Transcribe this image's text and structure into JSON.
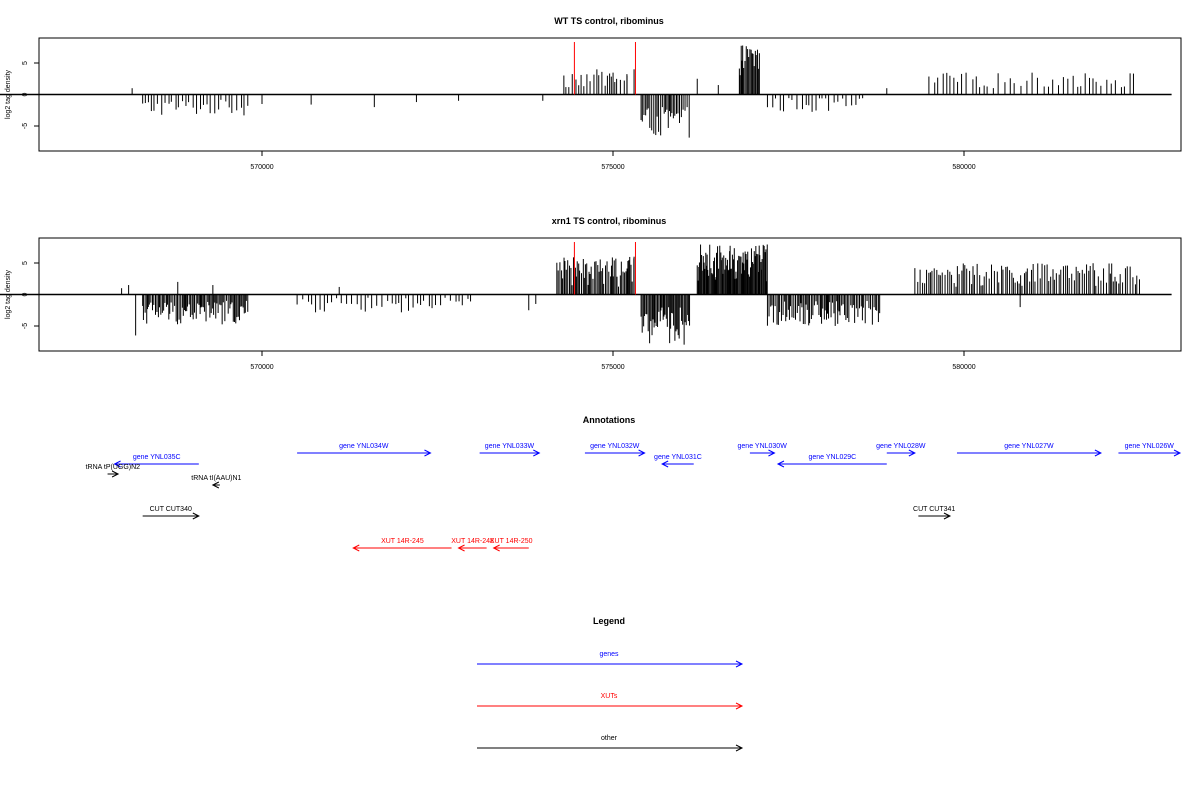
{
  "chart_data": [
    {
      "type": "bar",
      "title": "WT TS control, ribominus",
      "ylabel": "log2 tag density",
      "xlabel": "",
      "xlim": [
        567500,
        582500
      ],
      "ylim": [
        -8.5,
        8.5
      ],
      "x_ticks": [
        570000,
        575000,
        580000
      ],
      "x_tick_labels": [
        "570000",
        "575000",
        "580000"
      ],
      "y_ticks": [
        -5,
        0,
        5
      ],
      "y_tick_labels": [
        "-5",
        "0",
        "5"
      ],
      "baseline": {
        "x": [
          568000,
          583000
        ],
        "y": 0
      },
      "markers": [
        574450,
        575320
      ],
      "marker_color": "#ff0000",
      "bar_color": "#000000",
      "density_regions": [
        {
          "x": [
            568300,
            569800
          ],
          "min": -3.5,
          "max": -0.8,
          "step": 50
        },
        {
          "x": [
            574300,
            575200
          ],
          "min": 1,
          "max": 4,
          "step": 40
        },
        {
          "x": [
            575400,
            576100
          ],
          "min": -7,
          "max": -2,
          "step": 22
        },
        {
          "x": [
            576800,
            577100
          ],
          "min": 3,
          "max": 8,
          "step": 15
        },
        {
          "x": [
            577200,
            578600
          ],
          "min": -3,
          "max": -0.5,
          "step": 60
        },
        {
          "x": [
            579500,
            582500
          ],
          "min": 1,
          "max": 3.5,
          "step": 70
        }
      ],
      "values": [
        [
          568150,
          1
        ],
        [
          570000,
          -1.5
        ],
        [
          570700,
          -1.6
        ],
        [
          571600,
          -2
        ],
        [
          572200,
          -1.2
        ],
        [
          572800,
          -1
        ],
        [
          574000,
          -1
        ],
        [
          575300,
          4
        ],
        [
          575200,
          3
        ],
        [
          576200,
          2.5
        ],
        [
          576500,
          1.5
        ],
        [
          578900,
          1
        ]
      ]
    },
    {
      "type": "bar",
      "title": "xrn1 TS control, ribominus",
      "ylabel": "log2 tag density",
      "xlabel": "",
      "xlim": [
        567500,
        582500
      ],
      "ylim": [
        -8.5,
        8.5
      ],
      "x_ticks": [
        570000,
        575000,
        580000
      ],
      "x_tick_labels": [
        "570000",
        "575000",
        "580000"
      ],
      "y_ticks": [
        -5,
        0,
        5
      ],
      "y_tick_labels": [
        "-5",
        "0",
        "5"
      ],
      "baseline": {
        "x": [
          568000,
          583000
        ],
        "y": 0
      },
      "markers": [
        574450,
        575320
      ],
      "marker_color": "#ff0000",
      "bar_color": "#000000",
      "density_regions": [
        {
          "x": [
            568300,
            569800
          ],
          "min": -5,
          "max": -1,
          "step": 18
        },
        {
          "x": [
            570500,
            573000
          ],
          "min": -3,
          "max": -0.5,
          "step": 60
        },
        {
          "x": [
            574200,
            575300
          ],
          "min": 1,
          "max": 6,
          "step": 20
        },
        {
          "x": [
            575400,
            576100
          ],
          "min": -8,
          "max": -2,
          "step": 15
        },
        {
          "x": [
            576200,
            577200
          ],
          "min": 2,
          "max": 8,
          "step": 12
        },
        {
          "x": [
            577200,
            578800
          ],
          "min": -5,
          "max": -1,
          "step": 20
        },
        {
          "x": [
            579300,
            582500
          ],
          "min": 1,
          "max": 5,
          "step": 30
        }
      ],
      "values": [
        [
          568000,
          1
        ],
        [
          568100,
          1.5
        ],
        [
          568200,
          -6.5
        ],
        [
          568800,
          2
        ],
        [
          569300,
          1.5
        ],
        [
          571100,
          1.2
        ],
        [
          573800,
          -2.5
        ],
        [
          573900,
          -1.5
        ],
        [
          575300,
          6
        ],
        [
          578200,
          -2.5
        ],
        [
          580800,
          -2
        ]
      ]
    }
  ],
  "annotations": {
    "title": "Annotations",
    "xlim": [
      567500,
      582500
    ],
    "colors": {
      "genes": "#0000ff",
      "XUTs": "#ff0000",
      "other": "#000000"
    },
    "features": [
      {
        "label": "gene YNL035C",
        "type": "genes",
        "start": 569100,
        "end": 567900,
        "row": 1
      },
      {
        "label": "gene YNL034W",
        "type": "genes",
        "start": 570500,
        "end": 572400,
        "row": 0
      },
      {
        "label": "gene YNL033W",
        "type": "genes",
        "start": 573100,
        "end": 573950,
        "row": 0
      },
      {
        "label": "gene YNL032W",
        "type": "genes",
        "start": 574600,
        "end": 575450,
        "row": 0
      },
      {
        "label": "gene YNL031C",
        "type": "genes",
        "start": 576150,
        "end": 575700,
        "row": 1
      },
      {
        "label": "gene YNL030W",
        "type": "genes",
        "start": 576950,
        "end": 577300,
        "row": 0
      },
      {
        "label": "gene YNL029C",
        "type": "genes",
        "start": 578900,
        "end": 577350,
        "row": 1
      },
      {
        "label": "gene YNL028W",
        "type": "genes",
        "start": 578900,
        "end": 579300,
        "row": 0
      },
      {
        "label": "gene YNL027W",
        "type": "genes",
        "start": 579900,
        "end": 581950,
        "row": 0
      },
      {
        "label": "gene YNL026W",
        "type": "genes",
        "start": 582200,
        "end": 583400,
        "row": 0
      },
      {
        "label": "tRNA tP(UGG)N2",
        "type": "other",
        "start": 567800,
        "end": 567950,
        "row": 2
      },
      {
        "label": "tRNA tI(AAU)N1",
        "type": "other",
        "start": 569400,
        "end": 569300,
        "row": 3
      },
      {
        "label": "CUT CUT340",
        "type": "other",
        "start": 568300,
        "end": 569100,
        "row": 5
      },
      {
        "label": "CUT CUT341",
        "type": "other",
        "start": 579350,
        "end": 579800,
        "row": 5
      },
      {
        "label": "XUT 14R-245",
        "type": "XUTs",
        "start": 572700,
        "end": 571300,
        "row": 7
      },
      {
        "label": "XUT 14R-248",
        "type": "XUTs",
        "start": 573200,
        "end": 572800,
        "row": 7
      },
      {
        "label": "XUT 14R-250",
        "type": "XUTs",
        "start": 573800,
        "end": 573300,
        "row": 7
      }
    ]
  },
  "legend": {
    "title": "Legend",
    "items": [
      {
        "label": "genes",
        "color": "#0000ff"
      },
      {
        "label": "XUTs",
        "color": "#ff0000"
      },
      {
        "label": "other",
        "color": "#000000"
      }
    ]
  }
}
